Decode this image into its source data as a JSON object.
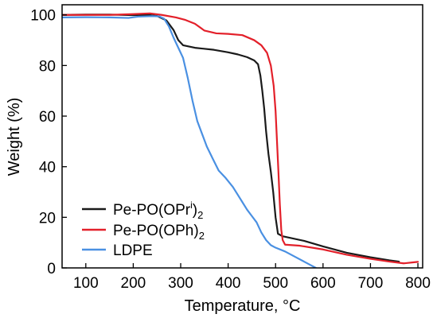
{
  "chart_data": {
    "type": "line",
    "xlabel": "Temperature, °C",
    "ylabel": "Weight (%)",
    "xlim": [
      50,
      810
    ],
    "ylim": [
      0,
      104
    ],
    "x_ticks": [
      100,
      200,
      300,
      400,
      500,
      600,
      700,
      800
    ],
    "y_ticks": [
      0,
      20,
      40,
      60,
      80,
      100
    ],
    "grid": false,
    "legend": {
      "position": "lower-left",
      "entries": [
        {
          "base": "Pe-PO(OPr",
          "sup": "i",
          "tail": ")",
          "sub": "2"
        },
        {
          "base": "Pe-PO(OPh)",
          "sup": "",
          "tail": "",
          "sub": "2"
        },
        {
          "base": "LDPE",
          "sup": "",
          "tail": "",
          "sub": ""
        }
      ]
    },
    "series": [
      {
        "name": "Pe-PO(OPri)2",
        "color": "#1a1a1a",
        "points": [
          [
            50,
            100
          ],
          [
            100,
            100.1
          ],
          [
            150,
            100.1
          ],
          [
            200,
            99.9
          ],
          [
            230,
            100
          ],
          [
            250,
            99.6
          ],
          [
            270,
            97.8
          ],
          [
            285,
            94
          ],
          [
            295,
            90
          ],
          [
            305,
            88
          ],
          [
            330,
            87
          ],
          [
            370,
            86.2
          ],
          [
            400,
            85.2
          ],
          [
            420,
            84.4
          ],
          [
            440,
            83.3
          ],
          [
            455,
            82
          ],
          [
            463,
            80.5
          ],
          [
            468,
            76
          ],
          [
            472,
            70
          ],
          [
            476,
            63
          ],
          [
            480,
            54
          ],
          [
            485,
            45
          ],
          [
            490,
            38
          ],
          [
            495,
            30
          ],
          [
            500,
            20
          ],
          [
            505,
            13.5
          ],
          [
            515,
            12.5
          ],
          [
            560,
            10.7
          ],
          [
            600,
            8.5
          ],
          [
            650,
            6
          ],
          [
            700,
            4.2
          ],
          [
            740,
            3
          ],
          [
            760,
            2.5
          ]
        ]
      },
      {
        "name": "Pe-PO(OPh)2",
        "color": "#e3202a",
        "points": [
          [
            50,
            100
          ],
          [
            150,
            100
          ],
          [
            200,
            100.3
          ],
          [
            235,
            100.6
          ],
          [
            260,
            100
          ],
          [
            290,
            99
          ],
          [
            310,
            98
          ],
          [
            330,
            96.5
          ],
          [
            350,
            93.8
          ],
          [
            375,
            92.7
          ],
          [
            400,
            92.5
          ],
          [
            430,
            92
          ],
          [
            455,
            90
          ],
          [
            470,
            88
          ],
          [
            482,
            85
          ],
          [
            490,
            80
          ],
          [
            496,
            72
          ],
          [
            500,
            62
          ],
          [
            503,
            50
          ],
          [
            506,
            38
          ],
          [
            509,
            25
          ],
          [
            512,
            15
          ],
          [
            515,
            11
          ],
          [
            520,
            9.2
          ],
          [
            550,
            8.8
          ],
          [
            600,
            7.3
          ],
          [
            650,
            5.2
          ],
          [
            700,
            3.6
          ],
          [
            740,
            2.5
          ],
          [
            770,
            1.8
          ],
          [
            790,
            2.2
          ],
          [
            800,
            2.4
          ]
        ]
      },
      {
        "name": "LDPE",
        "color": "#4a90e2",
        "points": [
          [
            50,
            99
          ],
          [
            100,
            99.1
          ],
          [
            150,
            99
          ],
          [
            190,
            98.8
          ],
          [
            210,
            99.3
          ],
          [
            240,
            99.5
          ],
          [
            255,
            99.4
          ],
          [
            265,
            98.5
          ],
          [
            275,
            95.5
          ],
          [
            285,
            91
          ],
          [
            295,
            87
          ],
          [
            305,
            83
          ],
          [
            315,
            75
          ],
          [
            325,
            66
          ],
          [
            335,
            58
          ],
          [
            345,
            53
          ],
          [
            355,
            48
          ],
          [
            368,
            43
          ],
          [
            380,
            38.5
          ],
          [
            395,
            35.5
          ],
          [
            410,
            32
          ],
          [
            420,
            29
          ],
          [
            430,
            26
          ],
          [
            440,
            23
          ],
          [
            450,
            20.5
          ],
          [
            460,
            18
          ],
          [
            470,
            14
          ],
          [
            480,
            11
          ],
          [
            490,
            9
          ],
          [
            500,
            8
          ],
          [
            520,
            6.5
          ],
          [
            540,
            4.5
          ],
          [
            560,
            2.5
          ],
          [
            575,
            1
          ],
          [
            585,
            0
          ]
        ]
      }
    ]
  }
}
